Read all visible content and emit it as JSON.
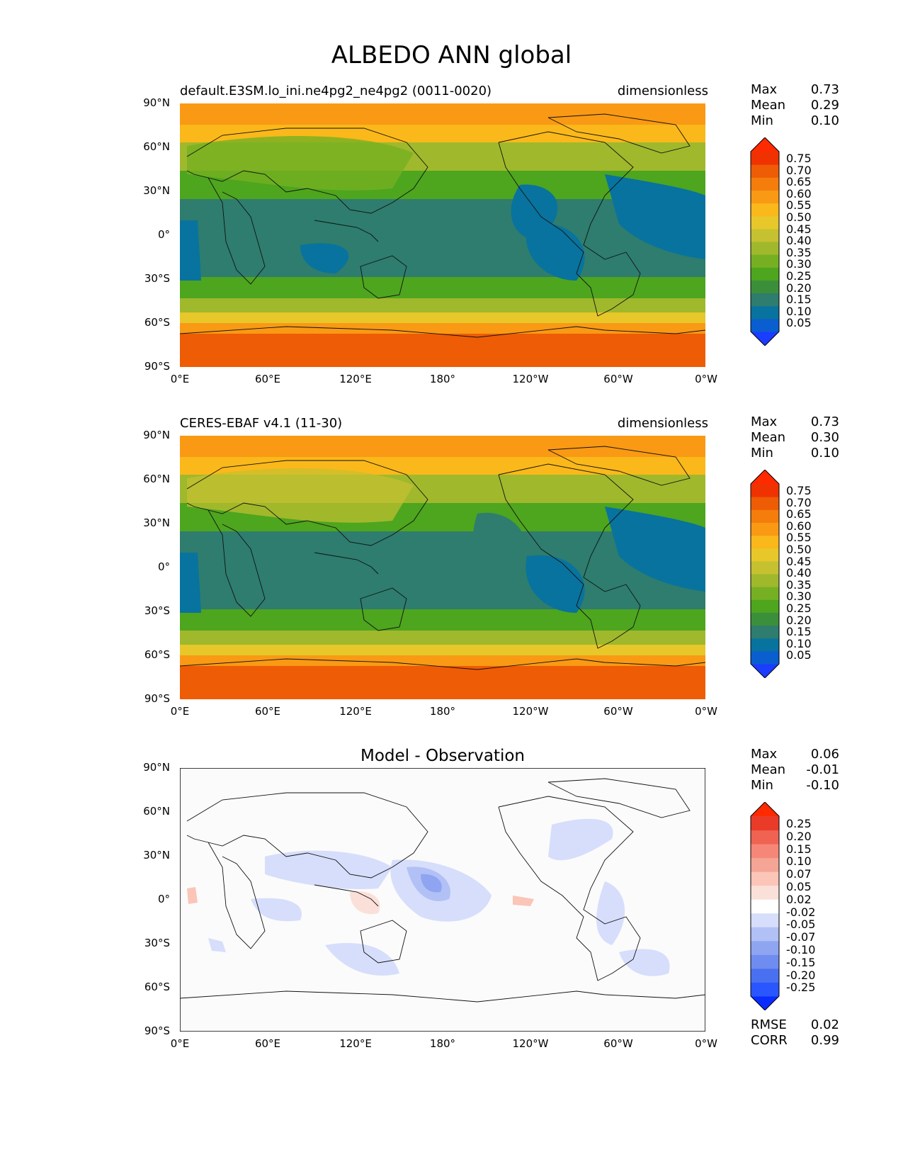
{
  "title": "ALBEDO ANN global",
  "xticks": [
    "0°E",
    "60°E",
    "120°E",
    "180°",
    "120°W",
    "60°W",
    "0°W"
  ],
  "yticks": [
    "90°N",
    "60°N",
    "30°N",
    "0°",
    "30°S",
    "60°S",
    "90°S"
  ],
  "panels": [
    {
      "left_label": "default.E3SM.lo_ini.ne4pg2_ne4pg2 (0011-0020)",
      "right_label": "dimensionless",
      "stats": {
        "max_label": "Max",
        "max": "0.73",
        "mean_label": "Mean",
        "mean": "0.29",
        "min_label": "Min",
        "min": "0.10"
      },
      "levels": [
        "0.75",
        "0.70",
        "0.65",
        "0.60",
        "0.55",
        "0.50",
        "0.45",
        "0.40",
        "0.35",
        "0.30",
        "0.25",
        "0.20",
        "0.15",
        "0.10",
        "0.05"
      ]
    },
    {
      "left_label": "CERES-EBAF v4.1 (11-30)",
      "right_label": "dimensionless",
      "stats": {
        "max_label": "Max",
        "max": "0.73",
        "mean_label": "Mean",
        "mean": "0.30",
        "min_label": "Min",
        "min": "0.10"
      },
      "levels": [
        "0.75",
        "0.70",
        "0.65",
        "0.60",
        "0.55",
        "0.50",
        "0.45",
        "0.40",
        "0.35",
        "0.30",
        "0.25",
        "0.20",
        "0.15",
        "0.10",
        "0.05"
      ]
    },
    {
      "center_label": "Model - Observation",
      "stats": {
        "max_label": "Max",
        "max": "0.06",
        "mean_label": "Mean",
        "mean": "-0.01",
        "min_label": "Min",
        "min": "-0.10"
      },
      "levels": [
        "0.25",
        "0.20",
        "0.15",
        "0.10",
        "0.07",
        "0.05",
        "0.02",
        "-0.02",
        "-0.05",
        "-0.07",
        "-0.10",
        "-0.15",
        "-0.20",
        "-0.25"
      ],
      "rmse_label": "RMSE",
      "rmse": "0.02",
      "corr_label": "CORR",
      "corr": "0.99"
    }
  ],
  "colors": {
    "albedo_scale": [
      "#1a3dff",
      "#0a5ecf",
      "#08739e",
      "#2e7d6e",
      "#3c8f3a",
      "#4ea51e",
      "#76b022",
      "#a0b82c",
      "#c5c131",
      "#e7c72a",
      "#fab81a",
      "#f99914",
      "#f47d0c",
      "#ee5c05",
      "#f03200",
      "#ff2a00"
    ],
    "diff_scale": [
      "#0a2cff",
      "#2a56ff",
      "#4a70f2",
      "#6f8cf0",
      "#8fa5f2",
      "#b2c1f5",
      "#d6defb",
      "#ffffff",
      "#fbe0da",
      "#fbc5b8",
      "#f5a596",
      "#f68778",
      "#f06252",
      "#ea3b28",
      "#ff2a00"
    ]
  }
}
